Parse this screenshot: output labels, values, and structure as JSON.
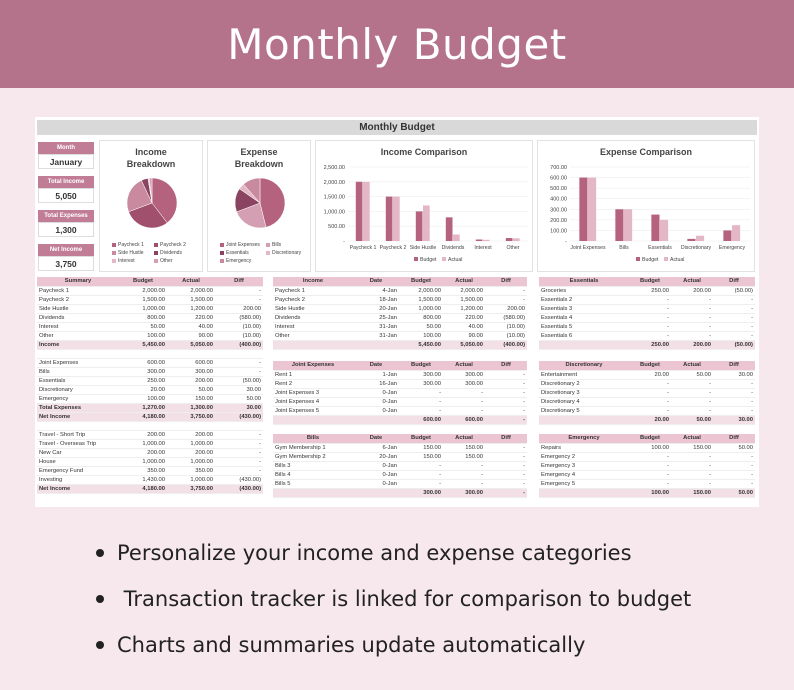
{
  "banner": {
    "title": "Monthly Budget"
  },
  "sheet": {
    "title": "Monthly Budget",
    "kpis": [
      {
        "label": "Month",
        "value": "January"
      },
      {
        "label": "Total Income",
        "value": "5,050"
      },
      {
        "label": "Total Expenses",
        "value": "1,300"
      },
      {
        "label": "Net Income",
        "value": "3,750"
      }
    ],
    "income_breakdown": {
      "title": "Income Breakdown",
      "legend": [
        "Paycheck 1",
        "Paycheck 2",
        "Side Hustle",
        "Dividends",
        "Interest",
        "Other"
      ]
    },
    "expense_breakdown": {
      "title": "Expense Breakdown",
      "legend": [
        "Joint Expenses",
        "Bills",
        "Essentials",
        "Discretionary",
        "Emergency"
      ]
    },
    "income_comparison": {
      "title": "Income Comparison",
      "y_ticks": [
        "2,500.00",
        "2,000.00",
        "1,500.00",
        "1,000.00",
        "500.00",
        "-"
      ],
      "legend": [
        "Budget",
        "Actual"
      ]
    },
    "expense_comparison": {
      "title": "Expense Comparison",
      "y_ticks": [
        "700.00",
        "600.00",
        "500.00",
        "400.00",
        "300.00",
        "200.00",
        "100.00",
        "-"
      ],
      "legend": [
        "Budget",
        "Actual"
      ]
    },
    "summary_table": {
      "headers": [
        "Summary",
        "Budget",
        "Actual",
        "Diff"
      ],
      "rows": [
        [
          "Paycheck 1",
          "2,000.00",
          "2,000.00",
          "-"
        ],
        [
          "Paycheck 2",
          "1,500.00",
          "1,500.00",
          "-"
        ],
        [
          "Side Hustle",
          "1,000.00",
          "1,200.00",
          "200.00"
        ],
        [
          "Dividends",
          "800.00",
          "220.00",
          "(580.00)"
        ],
        [
          "Interest",
          "50.00",
          "40.00",
          "(10.00)"
        ],
        [
          "Other",
          "100.00",
          "90.00",
          "(10.00)"
        ],
        [
          "Income",
          "5,450.00",
          "5,050.00",
          "(400.00)"
        ],
        [
          "",
          "",
          "",
          ""
        ],
        [
          "Joint Expenses",
          "600.00",
          "600.00",
          "-"
        ],
        [
          "Bills",
          "300.00",
          "300.00",
          "-"
        ],
        [
          "Essentials",
          "250.00",
          "200.00",
          "(50.00)"
        ],
        [
          "Discretionary",
          "20.00",
          "50.00",
          "30.00"
        ],
        [
          "Emergency",
          "100.00",
          "150.00",
          "50.00"
        ],
        [
          "Total Expenses",
          "1,270.00",
          "1,300.00",
          "30.00"
        ],
        [
          "Net Income",
          "4,180.00",
          "3,750.00",
          "(430.00)"
        ],
        [
          "",
          "",
          "",
          ""
        ],
        [
          "Travel - Short Trip",
          "200.00",
          "200.00",
          "-"
        ],
        [
          "Travel - Overseas Trip",
          "1,000.00",
          "1,000.00",
          "-"
        ],
        [
          "New Car",
          "200.00",
          "200.00",
          "-"
        ],
        [
          "House",
          "1,000.00",
          "1,000.00",
          "-"
        ],
        [
          "Emergency Fund",
          "350.00",
          "350.00",
          "-"
        ],
        [
          "Investing",
          "1,430.00",
          "1,000.00",
          "(430.00)"
        ],
        [
          "Net Income",
          "4,180.00",
          "3,750.00",
          "(430.00)"
        ]
      ]
    },
    "income_table": {
      "headers": [
        "Income",
        "Date",
        "Budget",
        "Actual",
        "Diff"
      ],
      "rows": [
        [
          "Paycheck 1",
          "4-Jan",
          "2,000.00",
          "2,000.00",
          "-"
        ],
        [
          "Paycheck 2",
          "18-Jan",
          "1,500.00",
          "1,500.00",
          "-"
        ],
        [
          "Side Hustle",
          "20-Jan",
          "1,000.00",
          "1,200.00",
          "200.00"
        ],
        [
          "Dividends",
          "25-Jan",
          "800.00",
          "220.00",
          "(580.00)"
        ],
        [
          "Interest",
          "31-Jan",
          "50.00",
          "40.00",
          "(10.00)"
        ],
        [
          "Other",
          "31-Jan",
          "100.00",
          "90.00",
          "(10.00)"
        ],
        [
          "",
          "",
          "5,450.00",
          "5,050.00",
          "(400.00)"
        ]
      ]
    },
    "joint_table": {
      "headers": [
        "Joint Expenses",
        "Date",
        "Budget",
        "Actual",
        "Diff"
      ],
      "rows": [
        [
          "Rent 1",
          "1-Jan",
          "300.00",
          "300.00",
          "-"
        ],
        [
          "Rent 2",
          "16-Jan",
          "300.00",
          "300.00",
          "-"
        ],
        [
          "Joint Expenses 3",
          "0-Jan",
          "-",
          "-",
          "-"
        ],
        [
          "Joint Expenses 4",
          "0-Jan",
          "-",
          "-",
          "-"
        ],
        [
          "Joint Expenses 5",
          "0-Jan",
          "-",
          "-",
          "-"
        ],
        [
          "",
          "",
          "600.00",
          "600.00",
          "-"
        ]
      ]
    },
    "bills_table": {
      "headers": [
        "Bills",
        "Date",
        "Budget",
        "Actual",
        "Diff"
      ],
      "rows": [
        [
          "Gym Membership 1",
          "6-Jan",
          "150.00",
          "150.00",
          "-"
        ],
        [
          "Gym Membership 2",
          "20-Jan",
          "150.00",
          "150.00",
          "-"
        ],
        [
          "Bills 3",
          "0-Jan",
          "-",
          "-",
          "-"
        ],
        [
          "Bills 4",
          "0-Jan",
          "-",
          "-",
          "-"
        ],
        [
          "Bills 5",
          "0-Jan",
          "-",
          "-",
          "-"
        ],
        [
          "",
          "",
          "300.00",
          "300.00",
          "-"
        ]
      ]
    },
    "essentials_table": {
      "headers": [
        "Essentials",
        "Budget",
        "Actual",
        "Diff"
      ],
      "rows": [
        [
          "Groceries",
          "250.00",
          "200.00",
          "(50.00)"
        ],
        [
          "Essentials 2",
          "-",
          "-",
          "-"
        ],
        [
          "Essentials 3",
          "-",
          "-",
          "-"
        ],
        [
          "Essentials 4",
          "-",
          "-",
          "-"
        ],
        [
          "Essentials 5",
          "-",
          "-",
          "-"
        ],
        [
          "Essentials 6",
          "-",
          "-",
          "-"
        ],
        [
          "",
          "250.00",
          "200.00",
          "(50.00)"
        ]
      ]
    },
    "discretionary_table": {
      "headers": [
        "Discretionary",
        "Budget",
        "Actual",
        "Diff"
      ],
      "rows": [
        [
          "Entertainment",
          "20.00",
          "50.00",
          "30.00"
        ],
        [
          "Discretionary 2",
          "-",
          "-",
          "-"
        ],
        [
          "Discretionary 3",
          "-",
          "-",
          "-"
        ],
        [
          "Discretionary 4",
          "-",
          "-",
          "-"
        ],
        [
          "Discretionary 5",
          "-",
          "-",
          "-"
        ],
        [
          "",
          "20.00",
          "50.00",
          "30.00"
        ]
      ]
    },
    "emergency_table": {
      "headers": [
        "Emergency",
        "Budget",
        "Actual",
        "Diff"
      ],
      "rows": [
        [
          "Repairs",
          "100.00",
          "150.00",
          "50.00"
        ],
        [
          "Emergency 2",
          "-",
          "-",
          "-"
        ],
        [
          "Emergency 3",
          "-",
          "-",
          "-"
        ],
        [
          "Emergency 4",
          "-",
          "-",
          "-"
        ],
        [
          "Emergency 5",
          "-",
          "-",
          "-"
        ],
        [
          "",
          "100.00",
          "150.00",
          "50.00"
        ]
      ]
    }
  },
  "features": [
    "Personalize your income and expense categories",
    " Transaction tracker is linked for comparison to budget",
    "Charts and summaries update automatically"
  ],
  "colors": {
    "banner": "#b5728b",
    "background": "#f7e8ee",
    "budget": "#b5627e",
    "actual": "#e3b7c6",
    "header": "#ebc5d2"
  },
  "chart_data": [
    {
      "type": "pie",
      "title": "Income Breakdown",
      "categories": [
        "Paycheck 1",
        "Paycheck 2",
        "Side Hustle",
        "Dividends",
        "Interest",
        "Other"
      ],
      "values": [
        2000,
        1500,
        1200,
        220,
        40,
        90
      ]
    },
    {
      "type": "pie",
      "title": "Expense Breakdown",
      "categories": [
        "Joint Expenses",
        "Bills",
        "Essentials",
        "Discretionary",
        "Emergency"
      ],
      "values": [
        600,
        300,
        200,
        50,
        150
      ]
    },
    {
      "type": "bar",
      "title": "Income Comparison",
      "categories": [
        "Paycheck 1",
        "Paycheck 2",
        "Side Hustle",
        "Dividends",
        "Interest",
        "Other"
      ],
      "series": [
        {
          "name": "Budget",
          "values": [
            2000,
            1500,
            1000,
            800,
            50,
            100
          ]
        },
        {
          "name": "Actual",
          "values": [
            2000,
            1500,
            1200,
            220,
            40,
            90
          ]
        }
      ],
      "ylim": [
        0,
        2500
      ],
      "legend": "bottom"
    },
    {
      "type": "bar",
      "title": "Expense Comparison",
      "categories": [
        "Joint Expenses",
        "Bills",
        "Essentials",
        "Discretionary",
        "Emergency"
      ],
      "series": [
        {
          "name": "Budget",
          "values": [
            600,
            300,
            250,
            20,
            100
          ]
        },
        {
          "name": "Actual",
          "values": [
            600,
            300,
            200,
            50,
            150
          ]
        }
      ],
      "ylim": [
        0,
        700
      ],
      "legend": "bottom"
    }
  ]
}
